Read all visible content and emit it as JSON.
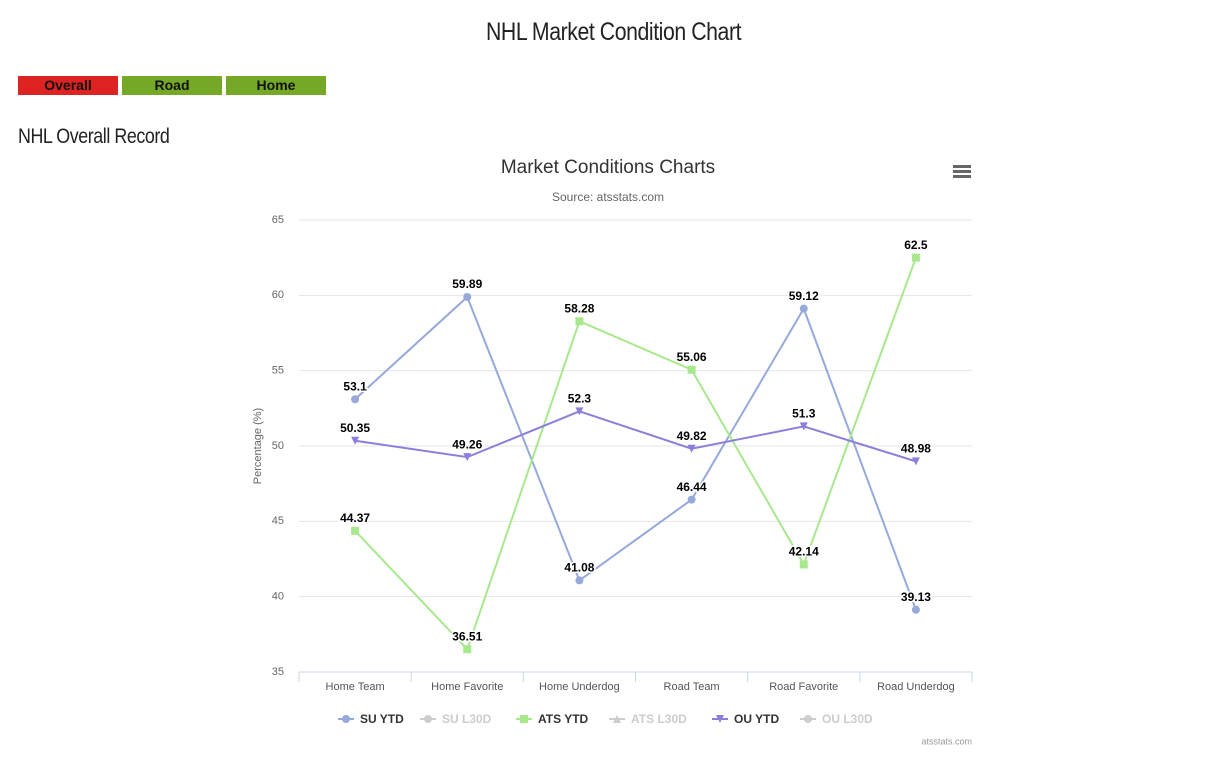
{
  "header": {
    "title": "NHL Market Condition Chart"
  },
  "tabs": [
    {
      "label": "Overall",
      "color": "#dd2222"
    },
    {
      "label": "Road",
      "color": "#76a827"
    },
    {
      "label": "Home",
      "color": "#76a827"
    }
  ],
  "section": {
    "title": "NHL Overall Record"
  },
  "chart_data": {
    "type": "line",
    "title": "Market Conditions Charts",
    "subtitle": "Source: atsstats.com",
    "y_label": "Percentage (%)",
    "credits": "atsstats.com",
    "categories": [
      "Home Team",
      "Home Favorite",
      "Home Underdog",
      "Road Team",
      "Road Favorite",
      "Road Underdog"
    ],
    "ylim": [
      35,
      65
    ],
    "yticks": [
      35,
      40,
      45,
      50,
      55,
      60,
      65
    ],
    "grid": true,
    "series": [
      {
        "name": "SU YTD",
        "color": "#95a9db",
        "marker": "circle",
        "visible": true,
        "values": [
          53.1,
          59.89,
          41.08,
          46.44,
          59.12,
          39.13
        ]
      },
      {
        "name": "SU L30D",
        "color": "#cccccc",
        "marker": "circle",
        "visible": false,
        "values": [
          null,
          null,
          null,
          null,
          null,
          null
        ]
      },
      {
        "name": "ATS YTD",
        "color": "#a8e88c",
        "marker": "square",
        "visible": true,
        "values": [
          44.37,
          36.51,
          58.28,
          55.06,
          42.14,
          62.5
        ]
      },
      {
        "name": "ATS L30D",
        "color": "#cccccc",
        "marker": "triangle",
        "visible": false,
        "values": [
          null,
          null,
          null,
          null,
          null,
          null
        ]
      },
      {
        "name": "OU YTD",
        "color": "#8c7fdc",
        "marker": "triangle-down",
        "visible": true,
        "values": [
          50.35,
          49.26,
          52.3,
          49.82,
          51.3,
          48.98
        ]
      },
      {
        "name": "OU L30D",
        "color": "#cccccc",
        "marker": "circle",
        "visible": false,
        "values": [
          null,
          null,
          null,
          null,
          null,
          null
        ]
      }
    ]
  }
}
